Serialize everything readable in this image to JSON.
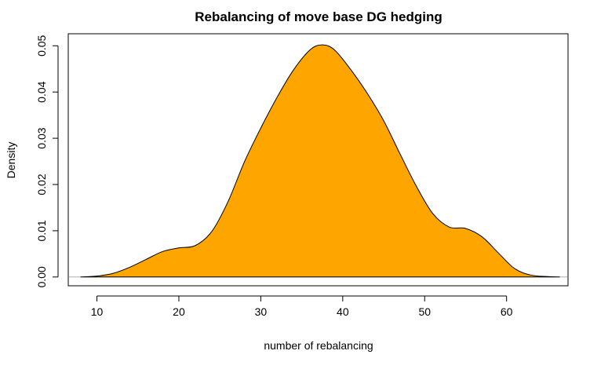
{
  "chart_data": {
    "type": "area",
    "title": "Rebalancing of move base DG hedging",
    "xlabel": "number of rebalancing",
    "ylabel": "Density",
    "xlim": [
      6.5,
      67.5
    ],
    "ylim": [
      -0.0019,
      0.0526
    ],
    "x_ticks": [
      10,
      20,
      30,
      40,
      50,
      60
    ],
    "y_ticks": [
      0.0,
      0.01,
      0.02,
      0.03,
      0.04,
      0.05
    ],
    "y_tick_labels": [
      "0.00",
      "0.01",
      "0.02",
      "0.03",
      "0.04",
      "0.05"
    ],
    "fill_color": "#FFA500",
    "line_color": "#000000",
    "grid": false,
    "series": [
      {
        "x": [
          8,
          10,
          12,
          14,
          16,
          18,
          20,
          22,
          24,
          26,
          28,
          30,
          32,
          34,
          36,
          37.5,
          39,
          41,
          43,
          45,
          47,
          49,
          51,
          53,
          55,
          57,
          59,
          61,
          63,
          65,
          66.5
        ],
        "y": [
          0.0,
          0.0002,
          0.0008,
          0.0021,
          0.0038,
          0.0055,
          0.0063,
          0.0068,
          0.0098,
          0.0163,
          0.0249,
          0.0322,
          0.0389,
          0.0448,
          0.0491,
          0.0502,
          0.0491,
          0.0448,
          0.0397,
          0.0338,
          0.0266,
          0.0196,
          0.0137,
          0.0108,
          0.0105,
          0.0087,
          0.0052,
          0.0018,
          0.0004,
          0.0001,
          0.0
        ]
      }
    ]
  }
}
